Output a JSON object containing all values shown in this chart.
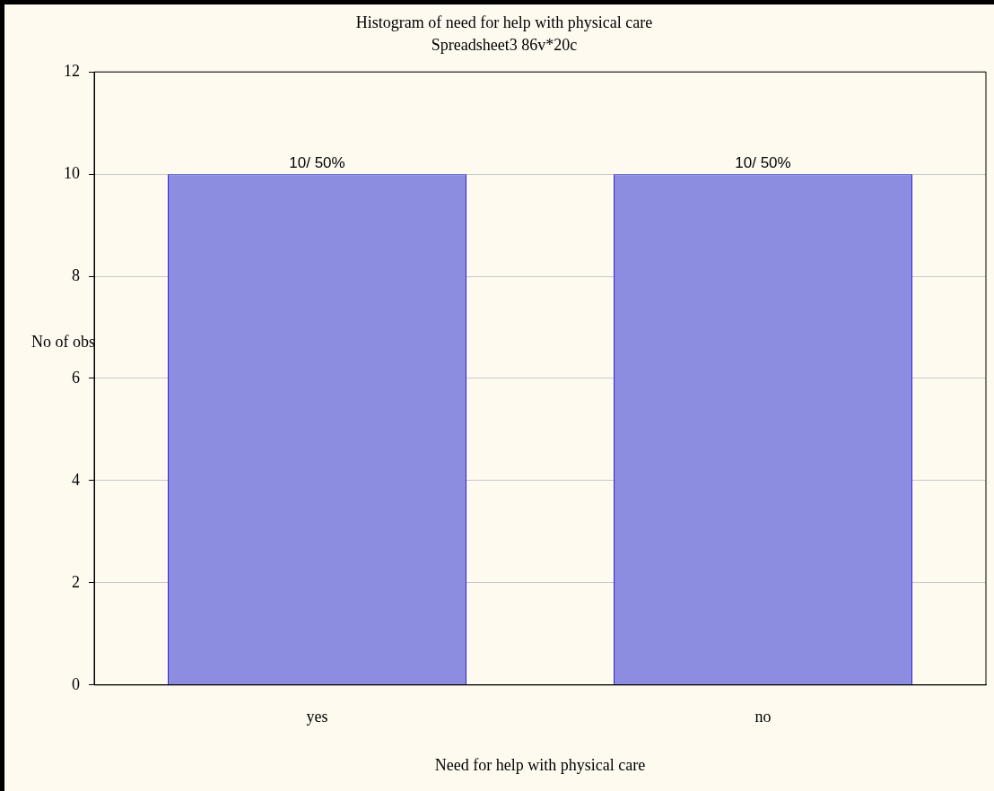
{
  "chart_data": {
    "type": "bar",
    "title": "Histogram of need for help with physical care",
    "subtitle": "Spreadsheet3 86v*20c",
    "xlabel": "Need for help with physical care",
    "ylabel": "No of obs",
    "categories": [
      "yes",
      "no"
    ],
    "values": [
      10,
      10
    ],
    "color": "#8c8ce0",
    "value_labels": [
      "10/ 50%",
      "10/ 50%"
    ],
    "ylim": [
      0,
      12
    ],
    "yticks": [
      0,
      2,
      4,
      6,
      8,
      10,
      12
    ],
    "grid": "y"
  }
}
